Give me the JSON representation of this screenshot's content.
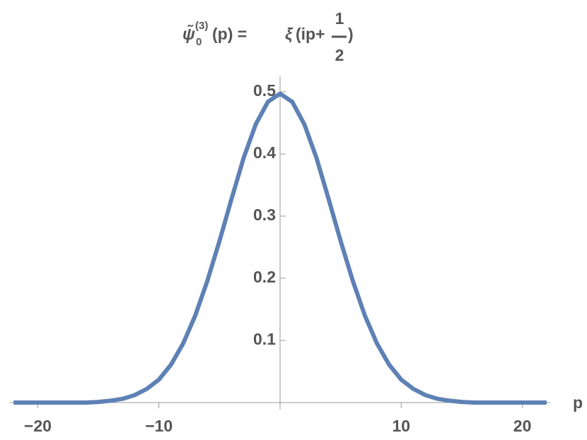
{
  "chart_data": {
    "type": "line",
    "title": {
      "symbol": "ψ̃",
      "subscript": "0",
      "superscript": "(3)",
      "argument": "(p) = ",
      "function": "ξ",
      "open": "(ip+",
      "numerator": "1",
      "denominator": "2",
      "close": ")"
    },
    "x_label": "p",
    "x": [
      -22,
      -21,
      -20,
      -19,
      -18,
      -17,
      -16,
      -15,
      -14,
      -13,
      -12,
      -11,
      -10,
      -9,
      -8,
      -7,
      -6,
      -5,
      -4,
      -3,
      -2,
      -1,
      0,
      1,
      2,
      3,
      4,
      5,
      6,
      7,
      8,
      9,
      10,
      11,
      12,
      13,
      14,
      15,
      16,
      17,
      18,
      19,
      20,
      21,
      22
    ],
    "values": [
      0,
      0,
      0,
      0,
      0,
      0,
      0,
      0.001,
      0.003,
      0.006,
      0.012,
      0.022,
      0.037,
      0.061,
      0.095,
      0.14,
      0.196,
      0.26,
      0.328,
      0.394,
      0.448,
      0.484,
      0.497,
      0.484,
      0.448,
      0.394,
      0.328,
      0.26,
      0.196,
      0.14,
      0.095,
      0.061,
      0.037,
      0.022,
      0.012,
      0.006,
      0.003,
      0.001,
      0,
      0,
      0,
      0,
      0,
      0,
      0
    ],
    "color": "#5e81b5",
    "xlim": [
      -22.3,
      22.3
    ],
    "ylim": [
      0,
      0.525
    ],
    "xticks": [
      {
        "value": -20,
        "label": "−20"
      },
      {
        "value": -10,
        "label": "−10"
      },
      10,
      20
    ],
    "yticks": [
      0.1,
      0.2,
      0.3,
      0.4,
      0.5
    ]
  }
}
